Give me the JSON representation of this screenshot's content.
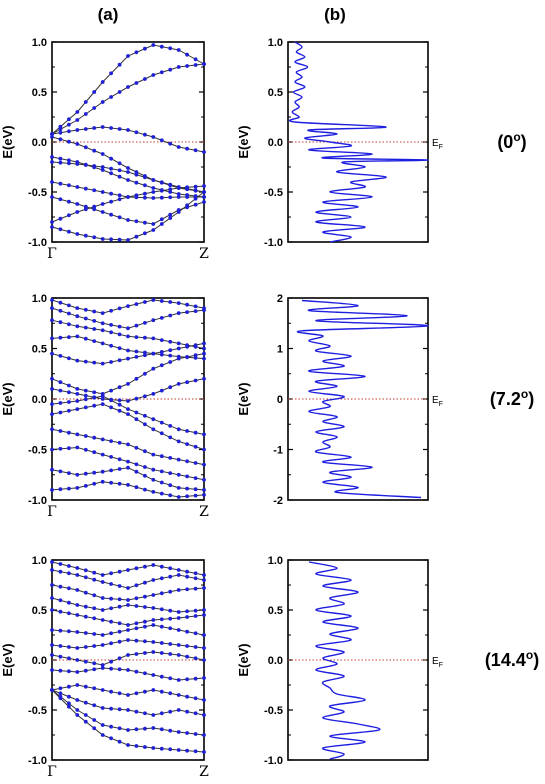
{
  "header": {
    "col_a": "(a)",
    "col_b": "(b)"
  },
  "colors": {
    "band_line": "#333333",
    "band_dot": "#1f1fd6",
    "dos_line": "#1f1fe0",
    "fermi": "#c0392b"
  },
  "k_labels": {
    "left": "Γ",
    "right": "Z"
  },
  "ef_label": {
    "main": "E",
    "sub": "F"
  },
  "chart_data": [
    {
      "type": "line",
      "panel": "a",
      "angle": "(0°)",
      "angle_text": "(0",
      "angle_sup": "o",
      "angle_close": ")",
      "ylabel": "E(eV)",
      "ylim": [
        -1.0,
        1.0
      ],
      "yticks": [
        "1.0",
        "0.5",
        "0.0",
        "-0.5",
        "-1.0"
      ],
      "ytick_values": [
        1.0,
        0.5,
        0.0,
        -0.5,
        -1.0
      ],
      "x_ticks": [
        "Γ",
        "Z"
      ],
      "fermi_level": 0.0,
      "series": [
        {
          "values": [
            0.08,
            0.3,
            0.6,
            0.86,
            0.97,
            0.92,
            0.78
          ]
        },
        {
          "values": [
            0.08,
            0.22,
            0.4,
            0.55,
            0.67,
            0.75,
            0.78
          ]
        },
        {
          "values": [
            0.08,
            0.12,
            0.15,
            0.12,
            0.05,
            -0.05,
            -0.1
          ]
        },
        {
          "values": [
            0.05,
            -0.02,
            -0.12,
            -0.26,
            -0.38,
            -0.46,
            -0.5
          ]
        },
        {
          "values": [
            -0.15,
            -0.2,
            -0.28,
            -0.38,
            -0.46,
            -0.52,
            -0.55
          ]
        },
        {
          "values": [
            -0.2,
            -0.22,
            -0.25,
            -0.3,
            -0.38,
            -0.45,
            -0.5
          ]
        },
        {
          "values": [
            -0.4,
            -0.45,
            -0.5,
            -0.55,
            -0.56,
            -0.55,
            -0.55
          ]
        },
        {
          "values": [
            -0.8,
            -0.7,
            -0.62,
            -0.55,
            -0.5,
            -0.46,
            -0.44
          ]
        },
        {
          "values": [
            -0.85,
            -0.92,
            -0.97,
            -0.98,
            -0.88,
            -0.7,
            -0.5
          ]
        },
        {
          "values": [
            -0.55,
            -0.62,
            -0.7,
            -0.78,
            -0.82,
            -0.68,
            -0.6
          ]
        }
      ]
    },
    {
      "type": "line",
      "panel": "b",
      "xlabel": "",
      "ylabel": "E(eV)",
      "ylim": [
        -1.0,
        1.0
      ],
      "yticks": [
        "1.0",
        "0.5",
        "0.0",
        "-0.5",
        "-1.0"
      ],
      "ytick_values": [
        1.0,
        0.5,
        0.0,
        -0.5,
        -1.0
      ],
      "fermi_level": 0.0,
      "y": [
        1.0,
        0.95,
        0.9,
        0.85,
        0.8,
        0.75,
        0.7,
        0.65,
        0.6,
        0.55,
        0.5,
        0.45,
        0.4,
        0.35,
        0.3,
        0.25,
        0.2,
        0.15,
        0.12,
        0.08,
        0.04,
        0.0,
        -0.04,
        -0.08,
        -0.12,
        -0.16,
        -0.18,
        -0.2,
        -0.25,
        -0.3,
        -0.35,
        -0.4,
        -0.45,
        -0.5,
        -0.55,
        -0.6,
        -0.65,
        -0.7,
        -0.75,
        -0.8,
        -0.85,
        -0.9,
        -0.95,
        -1.0
      ],
      "x": [
        0.05,
        0.1,
        0.06,
        0.12,
        0.05,
        0.14,
        0.06,
        0.1,
        0.05,
        0.12,
        0.04,
        0.1,
        0.05,
        0.08,
        0.03,
        0.08,
        0.05,
        0.7,
        0.15,
        0.35,
        0.12,
        0.3,
        0.45,
        0.15,
        0.6,
        0.25,
        1.0,
        0.4,
        0.55,
        0.35,
        0.7,
        0.45,
        0.55,
        0.3,
        0.6,
        0.25,
        0.5,
        0.2,
        0.45,
        0.2,
        0.55,
        0.25,
        0.45,
        0.3
      ]
    },
    {
      "type": "line",
      "panel": "a",
      "angle": "(7.2°)",
      "angle_text": "(7.2",
      "angle_sup": "o",
      "angle_close": ")",
      "ylabel": "E(eV)",
      "ylim": [
        -1.0,
        1.0
      ],
      "yticks": [
        "1.0",
        "0.5",
        "0.0",
        "-0.5",
        "-1.0"
      ],
      "ytick_values": [
        1.0,
        0.5,
        0.0,
        -0.5,
        -1.0
      ],
      "x_ticks": [
        "Γ",
        "Z"
      ],
      "fermi_level": 0.0,
      "series": [
        {
          "values": [
            0.98,
            0.9,
            0.85,
            0.92,
            0.98,
            0.95,
            0.9
          ]
        },
        {
          "values": [
            0.9,
            0.82,
            0.75,
            0.7,
            0.78,
            0.85,
            0.88
          ]
        },
        {
          "values": [
            0.78,
            0.72,
            0.68,
            0.62,
            0.6,
            0.55,
            0.5
          ]
        },
        {
          "values": [
            0.6,
            0.62,
            0.55,
            0.48,
            0.45,
            0.5,
            0.55
          ]
        },
        {
          "values": [
            0.45,
            0.38,
            0.35,
            0.4,
            0.45,
            0.42,
            0.4
          ]
        },
        {
          "values": [
            0.2,
            0.1,
            0.05,
            0.15,
            0.3,
            0.4,
            0.45
          ]
        },
        {
          "values": [
            0.1,
            0.05,
            0.0,
            -0.02,
            0.05,
            0.15,
            0.2
          ]
        },
        {
          "values": [
            -0.05,
            -0.02,
            0.03,
            -0.1,
            -0.2,
            -0.3,
            -0.35
          ]
        },
        {
          "values": [
            -0.15,
            -0.1,
            -0.05,
            -0.15,
            -0.3,
            -0.42,
            -0.5
          ]
        },
        {
          "values": [
            -0.3,
            -0.35,
            -0.4,
            -0.45,
            -0.55,
            -0.6,
            -0.65
          ]
        },
        {
          "values": [
            -0.5,
            -0.48,
            -0.55,
            -0.62,
            -0.7,
            -0.75,
            -0.8
          ]
        },
        {
          "values": [
            -0.7,
            -0.75,
            -0.72,
            -0.68,
            -0.8,
            -0.88,
            -0.9
          ]
        },
        {
          "values": [
            -0.9,
            -0.88,
            -0.82,
            -0.85,
            -0.92,
            -0.97,
            -0.95
          ]
        }
      ]
    },
    {
      "type": "line",
      "panel": "b",
      "xlabel": "",
      "ylabel": "E(eV)",
      "ylim": [
        -2.0,
        2.0
      ],
      "yticks": [
        "2",
        "1",
        "0",
        "-1",
        "-2"
      ],
      "ytick_values": [
        2,
        1,
        0,
        -1,
        -2
      ],
      "fermi_level": 0.0,
      "y": [
        1.95,
        1.85,
        1.75,
        1.65,
        1.55,
        1.45,
        1.35,
        1.25,
        1.15,
        1.05,
        0.95,
        0.85,
        0.75,
        0.65,
        0.55,
        0.45,
        0.35,
        0.25,
        0.15,
        0.05,
        -0.05,
        -0.15,
        -0.25,
        -0.35,
        -0.45,
        -0.55,
        -0.65,
        -0.75,
        -0.85,
        -0.95,
        -1.05,
        -1.15,
        -1.25,
        -1.35,
        -1.45,
        -1.55,
        -1.65,
        -1.75,
        -1.85,
        -1.95
      ],
      "x": [
        0.1,
        0.5,
        0.15,
        0.85,
        0.2,
        1.0,
        0.1,
        0.25,
        0.15,
        0.3,
        0.2,
        0.45,
        0.25,
        0.4,
        0.15,
        0.55,
        0.2,
        0.35,
        0.15,
        0.4,
        0.25,
        0.3,
        0.15,
        0.35,
        0.25,
        0.4,
        0.2,
        0.35,
        0.25,
        0.3,
        0.2,
        0.45,
        0.25,
        0.6,
        0.3,
        0.45,
        0.25,
        0.5,
        0.35,
        0.95
      ]
    },
    {
      "type": "line",
      "panel": "a",
      "angle": "(14.4°)",
      "angle_text": "(14.4",
      "angle_sup": "o",
      "angle_close": ")",
      "ylabel": "E(eV)",
      "ylim": [
        -1.0,
        1.0
      ],
      "yticks": [
        "1.0",
        "0.5",
        "0.0",
        "-0.5",
        "-1.0"
      ],
      "ytick_values": [
        1.0,
        0.5,
        0.0,
        -0.5,
        -1.0
      ],
      "x_ticks": [
        "Γ",
        "Z"
      ],
      "fermi_level": 0.0,
      "series": [
        {
          "values": [
            0.98,
            0.92,
            0.85,
            0.9,
            0.95,
            0.9,
            0.85
          ]
        },
        {
          "values": [
            0.9,
            0.85,
            0.78,
            0.72,
            0.8,
            0.85,
            0.8
          ]
        },
        {
          "values": [
            0.75,
            0.7,
            0.62,
            0.6,
            0.65,
            0.7,
            0.72
          ]
        },
        {
          "values": [
            0.62,
            0.55,
            0.5,
            0.55,
            0.52,
            0.48,
            0.5
          ]
        },
        {
          "values": [
            0.5,
            0.45,
            0.4,
            0.35,
            0.4,
            0.42,
            0.45
          ]
        },
        {
          "values": [
            0.3,
            0.28,
            0.25,
            0.3,
            0.35,
            0.3,
            0.25
          ]
        },
        {
          "values": [
            0.15,
            0.12,
            0.15,
            0.2,
            0.18,
            0.15,
            0.12
          ]
        },
        {
          "values": [
            0.05,
            0.0,
            -0.05,
            0.05,
            0.08,
            0.05,
            0.0
          ]
        },
        {
          "values": [
            -0.1,
            -0.12,
            -0.08,
            -0.1,
            -0.15,
            -0.2,
            -0.18
          ]
        },
        {
          "values": [
            -0.3,
            -0.25,
            -0.3,
            -0.35,
            -0.3,
            -0.35,
            -0.4
          ]
        },
        {
          "values": [
            -0.3,
            -0.4,
            -0.48,
            -0.5,
            -0.55,
            -0.5,
            -0.55
          ]
        },
        {
          "values": [
            -0.3,
            -0.5,
            -0.65,
            -0.7,
            -0.68,
            -0.72,
            -0.75
          ]
        },
        {
          "values": [
            -0.3,
            -0.55,
            -0.75,
            -0.85,
            -0.88,
            -0.9,
            -0.92
          ]
        }
      ]
    },
    {
      "type": "line",
      "panel": "b",
      "xlabel": "",
      "ylabel": "E(eV)",
      "ylim": [
        -1.0,
        1.0
      ],
      "yticks": [
        "1.0",
        "0.5",
        "0.0",
        "-0.5",
        "-1.0"
      ],
      "ytick_values": [
        1.0,
        0.5,
        0.0,
        -0.5,
        -1.0
      ],
      "fermi_level": 0.0,
      "y": [
        0.98,
        0.92,
        0.86,
        0.8,
        0.74,
        0.68,
        0.62,
        0.56,
        0.5,
        0.44,
        0.38,
        0.32,
        0.26,
        0.2,
        0.14,
        0.08,
        0.02,
        -0.04,
        -0.1,
        -0.16,
        -0.22,
        -0.28,
        -0.34,
        -0.4,
        -0.46,
        -0.52,
        -0.58,
        -0.64,
        -0.7,
        -0.76,
        -0.82,
        -0.88,
        -0.94,
        -0.99
      ],
      "x": [
        0.15,
        0.35,
        0.2,
        0.45,
        0.25,
        0.5,
        0.3,
        0.4,
        0.2,
        0.45,
        0.25,
        0.5,
        0.3,
        0.45,
        0.2,
        0.4,
        0.25,
        0.35,
        0.2,
        0.4,
        0.25,
        0.3,
        0.35,
        0.55,
        0.3,
        0.4,
        0.25,
        0.5,
        0.65,
        0.3,
        0.55,
        0.25,
        0.4,
        0.3
      ]
    }
  ]
}
